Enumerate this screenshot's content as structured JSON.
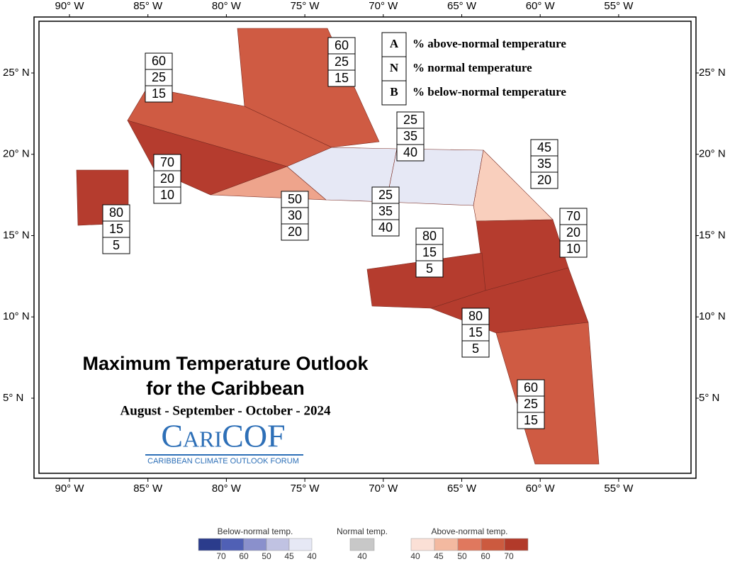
{
  "map": {
    "lon_ticks": [
      {
        "value": -90,
        "label": "90° W"
      },
      {
        "value": -85,
        "label": "85° W"
      },
      {
        "value": -80,
        "label": "80° W"
      },
      {
        "value": -75,
        "label": "75° W"
      },
      {
        "value": -70,
        "label": "70° W"
      },
      {
        "value": -65,
        "label": "65° W"
      },
      {
        "value": -60,
        "label": "60° W"
      },
      {
        "value": -55,
        "label": "55° W"
      }
    ],
    "lat_ticks": [
      {
        "value": 25,
        "label": "25° N"
      },
      {
        "value": 20,
        "label": "20° N"
      },
      {
        "value": 15,
        "label": "15° N"
      },
      {
        "value": 10,
        "label": "10° N"
      },
      {
        "value": 5,
        "label": "5° N"
      }
    ],
    "key": [
      {
        "letter": "A",
        "text": "% above-normal temperature"
      },
      {
        "letter": "N",
        "text": "% normal temperature"
      },
      {
        "letter": "B",
        "text": "% below-normal temperature"
      }
    ],
    "regions": [
      {
        "above": 60,
        "normal": 25,
        "below": 15,
        "color": "#cf5b43"
      },
      {
        "above": 60,
        "normal": 25,
        "below": 15,
        "color": "#cf5b43"
      },
      {
        "above": 70,
        "normal": 20,
        "below": 10,
        "color": "#b53c2e"
      },
      {
        "above": 50,
        "normal": 30,
        "below": 20,
        "color": "#eea48c"
      },
      {
        "above": 80,
        "normal": 15,
        "below": 5,
        "color": "#b53c2e"
      },
      {
        "above": 25,
        "normal": 35,
        "below": 40,
        "color": "#e6e8f5"
      },
      {
        "above": 25,
        "normal": 35,
        "below": 40,
        "color": "#e6e8f5"
      },
      {
        "above": 45,
        "normal": 35,
        "below": 20,
        "color": "#f9cfbd"
      },
      {
        "above": 70,
        "normal": 20,
        "below": 10,
        "color": "#b53c2e"
      },
      {
        "above": 80,
        "normal": 15,
        "below": 5,
        "color": "#b53c2e"
      },
      {
        "above": 80,
        "normal": 15,
        "below": 5,
        "color": "#b53c2e"
      },
      {
        "above": 60,
        "normal": 25,
        "below": 15,
        "color": "#cf5b43"
      }
    ],
    "title": "Maximum Temperature Outlook",
    "title2": "for the Caribbean",
    "period": "August - September - October - 2024",
    "logo": "CariCOF",
    "logo_sub": "CARIBBEAN CLIMATE OUTLOOK FORUM"
  },
  "legend": {
    "groups": [
      {
        "title": "Below-normal temp.",
        "colors": [
          "#2b3c8c",
          "#5060b5",
          "#8a90cc",
          "#c0c2e2",
          "#e6e8f5"
        ],
        "labels": [
          70,
          60,
          50,
          45,
          40
        ]
      },
      {
        "title": "Normal temp.",
        "colors": [
          "#c8c8c8"
        ],
        "labels": [
          40
        ]
      },
      {
        "title": "Above-normal temp.",
        "colors": [
          "#fbe0d6",
          "#f3b9a0",
          "#e0785e",
          "#cc5a3f",
          "#b23a2a"
        ],
        "labels": [
          40,
          45,
          50,
          60,
          70
        ]
      }
    ]
  }
}
